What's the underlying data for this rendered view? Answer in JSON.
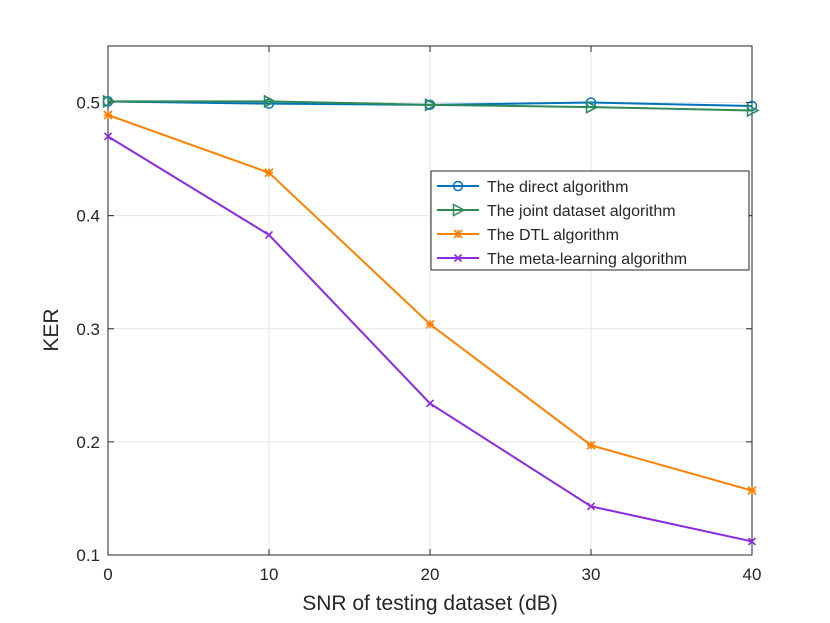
{
  "chart_data": {
    "type": "line",
    "title": "",
    "xlabel": "SNR of testing dataset (dB)",
    "ylabel": "KER",
    "xlim": [
      0,
      40
    ],
    "ylim": [
      0.1,
      0.55
    ],
    "grid": true,
    "legend_position": "upper-right",
    "x": [
      0,
      10,
      20,
      30,
      40
    ],
    "xticks": [
      "0",
      "10",
      "20",
      "30",
      "40"
    ],
    "yticks": [
      "0.1",
      "0.2",
      "0.3",
      "0.4",
      "0.5"
    ],
    "series": [
      {
        "name": "The direct algorithm",
        "marker": "circle",
        "color": "#0072BD",
        "values": [
          0.501,
          0.499,
          0.498,
          0.5,
          0.497
        ]
      },
      {
        "name": "The joint dataset algorithm",
        "marker": "triangle-right",
        "color": "#2E8B57",
        "values": [
          0.501,
          0.501,
          0.498,
          0.496,
          0.493
        ]
      },
      {
        "name": "The DTL algorithm",
        "marker": "asterisk",
        "color": "#FF8000",
        "values": [
          0.489,
          0.438,
          0.304,
          0.197,
          0.157
        ]
      },
      {
        "name": "The meta-learning algorithm",
        "marker": "x",
        "color": "#8A2BE2",
        "values": [
          0.47,
          0.383,
          0.234,
          0.143,
          0.112
        ]
      }
    ]
  }
}
